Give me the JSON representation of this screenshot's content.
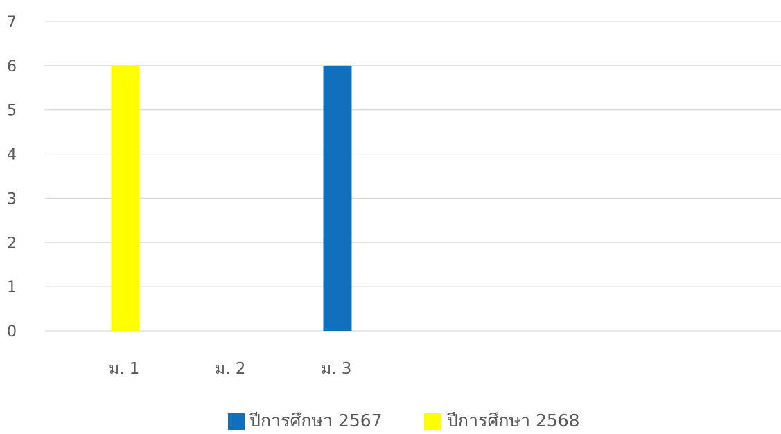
{
  "chart_data": {
    "type": "bar",
    "categories": [
      "ม. 1",
      "ม. 2",
      "ม. 3"
    ],
    "series": [
      {
        "name": "ปีการศึกษา 2567",
        "color": "#1070BE",
        "values": [
          0,
          0,
          6
        ]
      },
      {
        "name": "ปีการศึกษา 2568",
        "color": "#FFFF00",
        "values": [
          6,
          0,
          0
        ]
      }
    ],
    "yticks": [
      "0",
      "1",
      "2",
      "3",
      "4",
      "5",
      "6",
      "7"
    ],
    "ylim": [
      0,
      7
    ],
    "grid": true,
    "legend_position": "bottom"
  }
}
